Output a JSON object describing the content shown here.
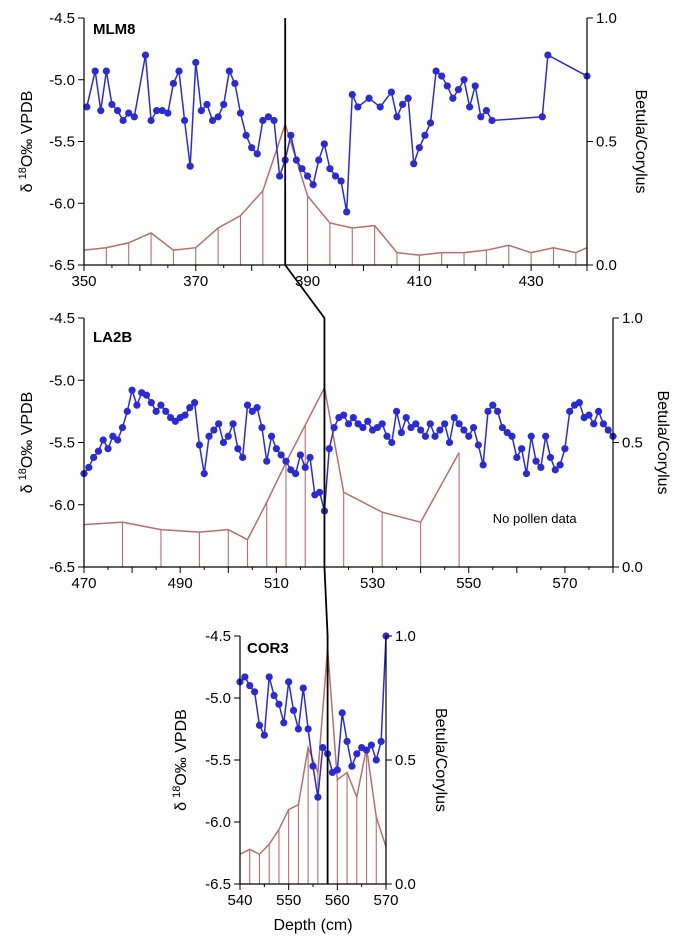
{
  "figure": {
    "xlabel": "Depth (cm)",
    "guide_depths": [
      386,
      520,
      558
    ]
  },
  "colors": {
    "isotope": "#2b2bd6",
    "pollen": "#b86e6e",
    "axis": "#000000"
  },
  "chart_data": [
    {
      "type": "line",
      "title": "MLM8",
      "ylabel_left": "δ 18O ‰ VPDB",
      "ylabel_left_parts": {
        "delta": "δ",
        "sup": "18",
        "rest": "O‰ VPDB"
      },
      "ylabel_right": "Betula/Corylus",
      "xlim": [
        350,
        440
      ],
      "x_ticks": [
        "350",
        "370",
        "390",
        "410",
        "430"
      ],
      "ylim_left": [
        -4.5,
        -6.5
      ],
      "y_ticks_left": [
        "-4.5",
        "-5.0",
        "-5.5",
        "-6.0",
        "-6.5"
      ],
      "ylim_right": [
        0,
        1
      ],
      "y_ticks_right": [
        "1.0",
        "0.5",
        "0.0"
      ],
      "series": [
        {
          "name": "δ18O",
          "axis": "left",
          "style": "line+markers",
          "x": [
            350.5,
            352,
            353,
            354,
            355,
            356,
            357,
            358,
            359,
            361,
            362,
            363,
            364,
            365,
            366,
            367,
            368,
            369,
            370,
            371,
            372,
            373,
            374,
            375,
            376,
            377,
            378,
            379,
            380,
            381,
            382,
            383,
            384,
            385,
            386,
            387,
            388,
            389,
            390,
            391,
            392,
            393,
            394,
            395,
            396,
            397,
            398,
            399,
            401,
            403,
            405,
            406,
            407,
            408,
            409,
            410,
            411,
            412,
            413,
            414,
            415,
            416,
            417,
            418,
            419,
            420,
            421,
            422,
            423,
            432,
            433,
            440
          ],
          "y": [
            -5.22,
            -4.93,
            -5.25,
            -4.93,
            -5.2,
            -5.25,
            -5.33,
            -5.27,
            -5.3,
            -4.8,
            -5.33,
            -5.25,
            -5.25,
            -5.27,
            -5.03,
            -4.93,
            -5.33,
            -5.7,
            -4.86,
            -5.25,
            -5.2,
            -5.33,
            -5.3,
            -5.2,
            -4.93,
            -5.03,
            -5.27,
            -5.45,
            -5.55,
            -5.6,
            -5.33,
            -5.3,
            -5.33,
            -5.78,
            -5.65,
            -5.45,
            -5.65,
            -5.72,
            -5.78,
            -5.85,
            -5.65,
            -5.52,
            -5.72,
            -5.78,
            -5.82,
            -6.07,
            -5.12,
            -5.22,
            -5.15,
            -5.22,
            -5.1,
            -5.3,
            -5.2,
            -5.15,
            -5.68,
            -5.55,
            -5.45,
            -5.35,
            -4.93,
            -4.97,
            -5.05,
            -5.15,
            -5.08,
            -5.0,
            -5.22,
            -5.05,
            -5.3,
            -5.25,
            -5.33,
            -5.3,
            -4.8,
            -4.97
          ]
        },
        {
          "name": "Betula/Corylus",
          "axis": "right",
          "style": "line+drop-lines",
          "x": [
            350,
            354,
            358,
            362,
            366,
            370,
            374,
            378,
            382,
            386,
            390,
            394,
            398,
            402,
            406,
            410,
            414,
            418,
            422,
            426,
            430,
            434,
            438,
            440
          ],
          "y": [
            0.06,
            0.07,
            0.09,
            0.13,
            0.06,
            0.07,
            0.15,
            0.2,
            0.3,
            0.57,
            0.28,
            0.17,
            0.15,
            0.16,
            0.05,
            0.04,
            0.05,
            0.05,
            0.06,
            0.08,
            0.05,
            0.07,
            0.05,
            0.07
          ]
        }
      ]
    },
    {
      "type": "line",
      "title": "LA2B",
      "ylabel_left": "δ 18O ‰ VPDB",
      "ylabel_left_parts": {
        "delta": "δ",
        "sup": "18",
        "rest": "O‰ VPDB"
      },
      "ylabel_right": "Betula/Corylus",
      "xlim": [
        470,
        580
      ],
      "x_ticks": [
        "470",
        "490",
        "510",
        "530",
        "550",
        "570"
      ],
      "ylim_left": [
        -4.5,
        -6.5
      ],
      "y_ticks_left": [
        "-4.5",
        "-5.0",
        "-5.5",
        "-6.0",
        "-6.5"
      ],
      "ylim_right": [
        0,
        1
      ],
      "y_ticks_right": [
        "1.0",
        "0.5",
        "0.0"
      ],
      "annotations": [
        "No pollen data"
      ],
      "series": [
        {
          "name": "δ18O",
          "axis": "left",
          "style": "line+markers",
          "x": [
            470,
            471,
            472,
            473,
            474,
            475,
            476,
            477,
            478,
            479,
            480,
            481,
            482,
            483,
            484,
            485,
            486,
            487,
            488,
            489,
            490,
            491,
            492,
            493,
            494,
            495,
            496,
            497,
            498,
            499,
            500,
            501,
            502,
            503,
            504,
            505,
            506,
            507,
            508,
            509,
            510,
            511,
            512,
            513,
            514,
            515,
            516,
            517,
            518,
            519,
            520,
            521,
            522,
            523,
            524,
            525,
            526,
            527,
            528,
            529,
            530,
            531,
            532,
            533,
            534,
            535,
            536,
            537,
            538,
            539,
            540,
            541,
            542,
            543,
            544,
            545,
            546,
            547,
            548,
            549,
            550,
            551,
            552,
            553,
            554,
            555,
            556,
            557,
            558,
            559,
            560,
            561,
            562,
            563,
            564,
            565,
            566,
            567,
            568,
            569,
            570,
            571,
            572,
            573,
            574,
            575,
            576,
            577,
            578,
            579,
            580
          ],
          "y": [
            -5.75,
            -5.7,
            -5.62,
            -5.57,
            -5.48,
            -5.55,
            -5.45,
            -5.48,
            -5.38,
            -5.25,
            -5.08,
            -5.2,
            -5.1,
            -5.12,
            -5.18,
            -5.25,
            -5.2,
            -5.25,
            -5.3,
            -5.33,
            -5.3,
            -5.28,
            -5.22,
            -5.18,
            -5.52,
            -5.75,
            -5.45,
            -5.4,
            -5.35,
            -5.5,
            -5.45,
            -5.35,
            -5.55,
            -5.62,
            -5.2,
            -5.25,
            -5.22,
            -5.38,
            -5.65,
            -5.45,
            -5.55,
            -5.6,
            -5.65,
            -5.72,
            -5.75,
            -5.6,
            -5.7,
            -5.62,
            -5.92,
            -5.9,
            -6.05,
            -5.55,
            -5.38,
            -5.3,
            -5.28,
            -5.35,
            -5.3,
            -5.35,
            -5.38,
            -5.33,
            -5.4,
            -5.38,
            -5.35,
            -5.45,
            -5.5,
            -5.25,
            -5.42,
            -5.3,
            -5.38,
            -5.35,
            -5.4,
            -5.45,
            -5.35,
            -5.45,
            -5.4,
            -5.35,
            -5.5,
            -5.3,
            -5.35,
            -5.4,
            -5.45,
            -5.38,
            -5.52,
            -5.68,
            -5.25,
            -5.2,
            -5.25,
            -5.38,
            -5.42,
            -5.45,
            -5.62,
            -5.55,
            -5.75,
            -5.45,
            -5.65,
            -5.7,
            -5.45,
            -5.62,
            -5.72,
            -5.68,
            -5.55,
            -5.25,
            -5.2,
            -5.18,
            -5.3,
            -5.28,
            -5.35,
            -5.25,
            -5.35,
            -5.4,
            -5.45
          ]
        },
        {
          "name": "Betula/Corylus",
          "axis": "right",
          "style": "line+drop-lines",
          "x": [
            470,
            478,
            486,
            494,
            500,
            504,
            508,
            512,
            516,
            520,
            524,
            532,
            540,
            548
          ],
          "y": [
            0.17,
            0.18,
            0.15,
            0.14,
            0.15,
            0.11,
            0.26,
            0.42,
            0.57,
            0.72,
            0.3,
            0.22,
            0.18,
            0.46
          ]
        }
      ]
    },
    {
      "type": "line",
      "title": "COR3",
      "ylabel_left": "δ 18O ‰ VPDB",
      "ylabel_left_parts": {
        "delta": "δ",
        "sup": "18",
        "rest": "O‰ VPDB"
      },
      "ylabel_right": "Betula/Corylus",
      "xlabel": "Depth (cm)",
      "xlim": [
        540,
        570
      ],
      "x_ticks": [
        "540",
        "550",
        "560",
        "570"
      ],
      "ylim_left": [
        -4.5,
        -6.5
      ],
      "y_ticks_left": [
        "-4.5",
        "-5.0",
        "-5.5",
        "-6.0",
        "-6.5"
      ],
      "ylim_right": [
        0,
        1
      ],
      "y_ticks_right": [
        "1.0",
        "0.5",
        "0.0"
      ],
      "series": [
        {
          "name": "δ18O",
          "axis": "left",
          "style": "line+markers",
          "x": [
            540,
            541,
            542,
            543,
            544,
            545,
            546,
            547,
            548,
            549,
            550,
            551,
            552,
            553,
            554,
            555,
            556,
            557,
            558,
            559,
            560,
            561,
            562,
            563,
            564,
            565,
            566,
            567,
            568,
            569,
            570
          ],
          "y": [
            -4.87,
            -4.83,
            -4.9,
            -4.95,
            -5.22,
            -5.3,
            -4.83,
            -4.98,
            -5.05,
            -5.2,
            -4.87,
            -5.1,
            -5.25,
            -4.92,
            -5.25,
            -5.55,
            -5.8,
            -5.4,
            -5.45,
            -5.6,
            -5.58,
            -5.12,
            -5.35,
            -5.55,
            -5.45,
            -5.4,
            -5.42,
            -5.38,
            -5.5,
            -5.35,
            -4.5
          ]
        },
        {
          "name": "Betula/Corylus",
          "axis": "right",
          "style": "line+drop-lines",
          "x": [
            540,
            542,
            544,
            546,
            548,
            550,
            552,
            554,
            556,
            558,
            560,
            562,
            564,
            566,
            568,
            570
          ],
          "y": [
            0.12,
            0.14,
            0.12,
            0.16,
            0.22,
            0.3,
            0.32,
            0.55,
            0.45,
            0.95,
            0.42,
            0.45,
            0.35,
            0.55,
            0.27,
            0.15
          ]
        }
      ]
    }
  ]
}
